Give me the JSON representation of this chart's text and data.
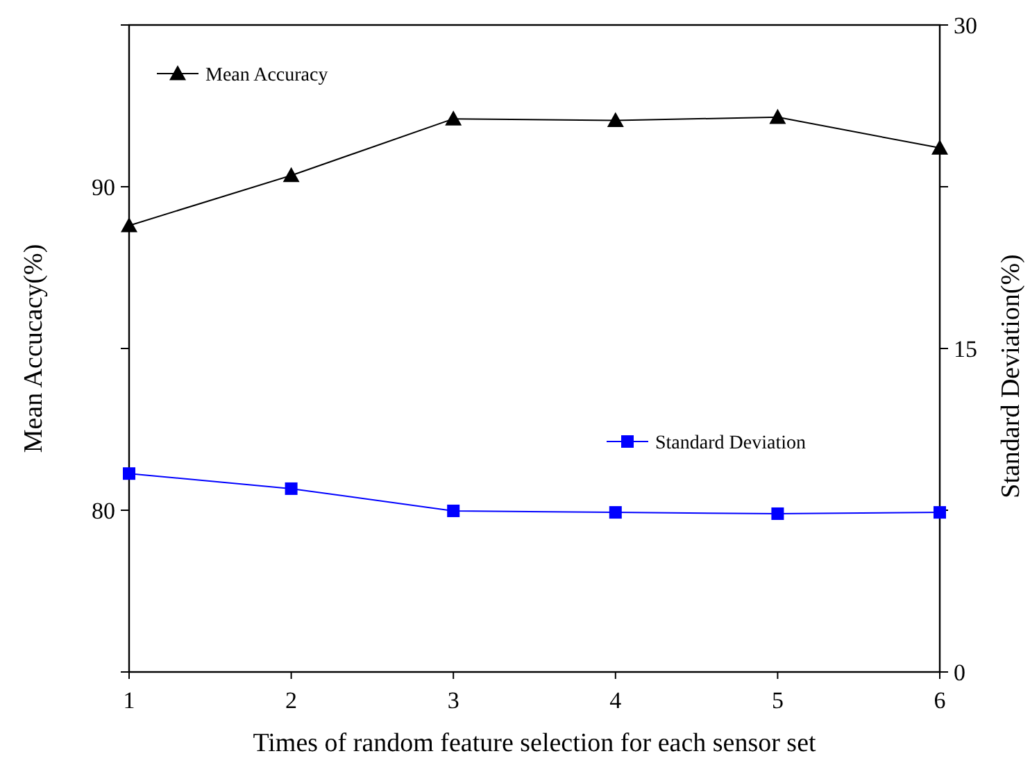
{
  "chart_data": {
    "type": "line",
    "xlabel": "Times of random feature selection for each sensor set",
    "ylabel": "Mean Accucacy(%)",
    "y2label": "Standard  Deviation(%)",
    "x": [
      1,
      2,
      3,
      4,
      5,
      6
    ],
    "xlim": [
      1,
      6
    ],
    "xticks": [
      1,
      2,
      3,
      4,
      5,
      6
    ],
    "ylim": [
      75,
      95
    ],
    "yticks": [
      {
        "value": 75,
        "label": null
      },
      80,
      {
        "value": 85,
        "label": null
      },
      90,
      {
        "value": 95,
        "label": null
      }
    ],
    "y2lim": [
      0,
      30
    ],
    "y2ticks": [
      0,
      {
        "value": 7.5,
        "label": null
      },
      15,
      {
        "value": 22.5,
        "label": null
      },
      30
    ],
    "series": [
      {
        "name": "Mean Accuracy",
        "color": "#000000",
        "values": [
          88.8,
          90.35,
          92.1,
          92.05,
          92.15,
          91.2
        ],
        "marker": "triangle"
      },
      {
        "name": "Standard Deviation",
        "color": "#0000ff",
        "values": [
          9.2,
          8.5,
          7.47,
          7.4,
          7.34,
          7.4
        ],
        "marker": "square",
        "axis": "y2"
      }
    ],
    "legend": "top left",
    "grid": false,
    "line_style": "solid"
  }
}
